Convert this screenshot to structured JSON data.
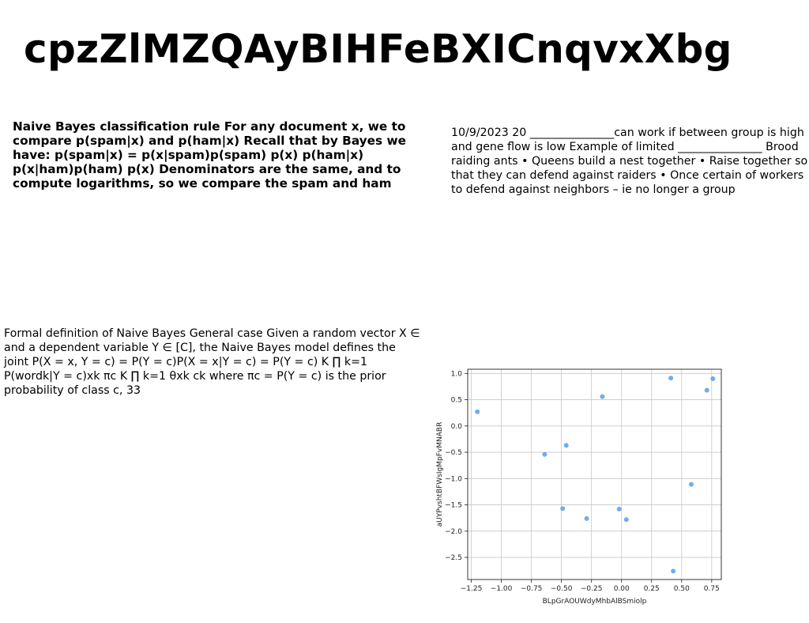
{
  "document": {
    "title": "cpzZlMZQAyBIHFeBXICnqvxXbg",
    "block_bold": "Naive Bayes classification rule For any document x, we to compare p(spam|x) and p(ham|x) Recall that by Bayes we have: p(spam|x) = p(x|spam)p(spam) p(x) p(ham|x) p(x|ham)p(ham) p(x) Denominators are the same, and to compute logarithms, so we compare the spam and ham",
    "block_right": "10/9/2023 20 _______________can work if between group is high and gene flow is low Example of limited _______________ Brood raiding ants • Queens build a nest together • Raise together so that they can defend against raiders • Once certain of workers to defend against neighbors – ie no longer a group",
    "block_left": "Formal definition of Naive Bayes General case Given a random vector X ∈ and a dependent variable Y ∈ [C], the Naive Bayes model defines the joint P(X = x, Y = c) = P(Y = c)P(X = x|Y = c) = P(Y = c) K ∏ k=1 P(wordk|Y = c)xk πc K ∏ k=1 θxk ck where πc = P(Y = c) is the prior probability of class c, 33"
  },
  "chart_data": {
    "type": "scatter",
    "xlabel": "BLpGrAOUWdyMhbAlBSmiolp",
    "ylabel": "aUYPvshtBFWsIgMpFvMNABR",
    "xlim": [
      -1.28,
      0.83
    ],
    "ylim": [
      -2.92,
      1.08
    ],
    "xticks": [
      -1.25,
      -1.0,
      -0.75,
      -0.5,
      -0.25,
      0.0,
      0.25,
      0.5,
      0.75
    ],
    "xtick_labels": [
      "−1.25",
      "−1.00",
      "−0.75",
      "−0.50",
      "−0.25",
      "0.00",
      "0.25",
      "0.50",
      "0.75"
    ],
    "yticks": [
      1.0,
      0.5,
      0.0,
      -0.5,
      -1.0,
      -1.5,
      -2.0,
      -2.5
    ],
    "ytick_labels": [
      "1.0",
      "0.5",
      "0.0",
      "−0.5",
      "−1.0",
      "−1.5",
      "−2.0",
      "−2.5"
    ],
    "grid": true,
    "point_color": "#5a9ee8",
    "x": [
      -1.2,
      -0.64,
      -0.46,
      -0.16,
      0.41,
      0.71,
      0.76,
      -0.49,
      -0.29,
      -0.02,
      0.04,
      0.58,
      0.43
    ],
    "y": [
      0.27,
      -0.54,
      -0.37,
      0.56,
      0.91,
      0.68,
      0.9,
      -1.57,
      -1.76,
      -1.58,
      -1.78,
      -1.11,
      -2.76
    ]
  }
}
